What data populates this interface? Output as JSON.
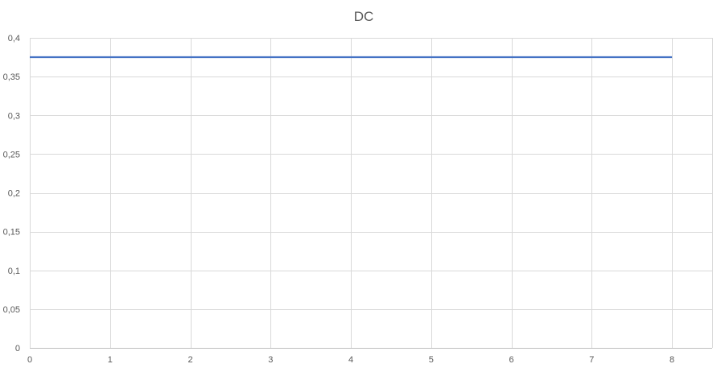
{
  "chart_data": {
    "type": "line",
    "title": "DC",
    "xlabel": "",
    "ylabel": "",
    "x_ticks": [
      "0",
      "1",
      "2",
      "3",
      "4",
      "5",
      "6",
      "7",
      "8"
    ],
    "y_ticks": [
      "0",
      "0,05",
      "0,1",
      "0,15",
      "0,2",
      "0,25",
      "0,3",
      "0,35",
      "0,4"
    ],
    "xlim": [
      0,
      8.5
    ],
    "ylim": [
      0,
      0.4
    ],
    "grid": true,
    "legend": "none",
    "series": [
      {
        "color": "#4472c4",
        "x": [
          0,
          1,
          2,
          3,
          4,
          5,
          6,
          7,
          8
        ],
        "y": [
          0.375,
          0.375,
          0.375,
          0.375,
          0.375,
          0.375,
          0.375,
          0.375,
          0.375
        ]
      }
    ]
  }
}
